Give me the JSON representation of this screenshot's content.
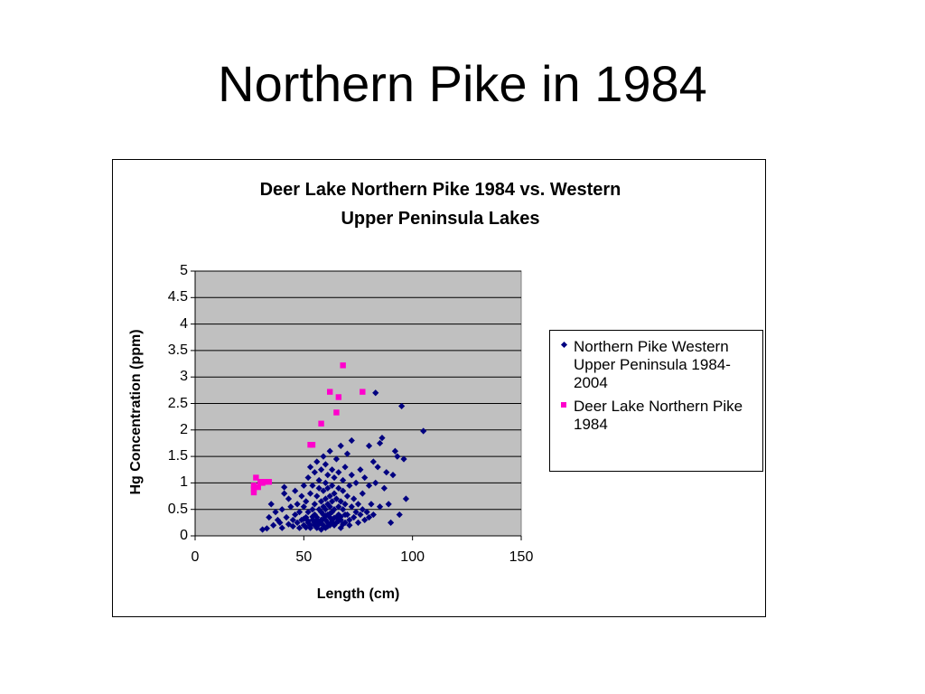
{
  "slide": {
    "title": "Northern Pike in 1984"
  },
  "chart_data": {
    "type": "scatter",
    "title": "Deer Lake Northern Pike 1984 vs. Western Upper Peninsula Lakes",
    "xlabel": "Length (cm)",
    "ylabel": "Hg Concentration (ppm)",
    "xlim": [
      0,
      150
    ],
    "ylim": [
      0,
      5
    ],
    "xticks": [
      "0",
      "50",
      "100",
      "150"
    ],
    "yticks": [
      "0",
      "0.5",
      "1",
      "1.5",
      "2",
      "2.5",
      "3",
      "3.5",
      "4",
      "4.5",
      "5"
    ],
    "grid": "horizontal",
    "legend_position": "right",
    "plot_background": "#c0c0c0",
    "series": [
      {
        "name": "Northern Pike Western Upper Peninsula 1984-2004",
        "marker": "diamond",
        "color": "#000080",
        "points": [
          [
            31,
            0.12
          ],
          [
            33,
            0.14
          ],
          [
            34,
            0.35
          ],
          [
            35,
            0.6
          ],
          [
            36,
            0.2
          ],
          [
            37,
            0.45
          ],
          [
            38,
            0.3
          ],
          [
            39,
            0.25
          ],
          [
            40,
            0.15
          ],
          [
            40,
            0.5
          ],
          [
            41,
            0.8
          ],
          [
            41,
            0.92
          ],
          [
            42,
            0.35
          ],
          [
            43,
            0.7
          ],
          [
            43,
            0.22
          ],
          [
            44,
            0.55
          ],
          [
            45,
            0.3
          ],
          [
            45,
            0.18
          ],
          [
            46,
            0.4
          ],
          [
            46,
            0.85
          ],
          [
            47,
            0.25
          ],
          [
            47,
            0.6
          ],
          [
            48,
            0.15
          ],
          [
            48,
            0.45
          ],
          [
            49,
            0.75
          ],
          [
            49,
            0.3
          ],
          [
            50,
            0.2
          ],
          [
            50,
            0.55
          ],
          [
            50,
            0.95
          ],
          [
            51,
            0.35
          ],
          [
            51,
            0.65
          ],
          [
            52,
            0.25
          ],
          [
            52,
            1.1
          ],
          [
            52,
            0.45
          ],
          [
            53,
            0.15
          ],
          [
            53,
            0.8
          ],
          [
            53,
            1.3
          ],
          [
            54,
            0.5
          ],
          [
            54,
            0.3
          ],
          [
            54,
            0.95
          ],
          [
            55,
            0.2
          ],
          [
            55,
            0.6
          ],
          [
            55,
            1.2
          ],
          [
            55,
            0.4
          ],
          [
            56,
            0.35
          ],
          [
            56,
            0.75
          ],
          [
            56,
            1.4
          ],
          [
            56,
            0.15
          ],
          [
            57,
            0.5
          ],
          [
            57,
            0.9
          ],
          [
            57,
            0.25
          ],
          [
            57,
            1.05
          ],
          [
            58,
            0.3
          ],
          [
            58,
            0.65
          ],
          [
            58,
            0.45
          ],
          [
            58,
            1.25
          ],
          [
            58,
            0.12
          ],
          [
            59,
            0.55
          ],
          [
            59,
            0.85
          ],
          [
            59,
            0.2
          ],
          [
            59,
            0.4
          ],
          [
            59,
            1.5
          ],
          [
            60,
            0.3
          ],
          [
            60,
            0.7
          ],
          [
            60,
            1.0
          ],
          [
            60,
            0.5
          ],
          [
            60,
            0.15
          ],
          [
            60,
            1.35
          ],
          [
            61,
            0.25
          ],
          [
            61,
            0.6
          ],
          [
            61,
            0.9
          ],
          [
            61,
            0.4
          ],
          [
            61,
            1.15
          ],
          [
            62,
            0.35
          ],
          [
            62,
            0.75
          ],
          [
            62,
            0.2
          ],
          [
            62,
            0.55
          ],
          [
            62,
            1.6
          ],
          [
            63,
            0.45
          ],
          [
            63,
            0.95
          ],
          [
            63,
            0.3
          ],
          [
            63,
            1.25
          ],
          [
            63,
            0.65
          ],
          [
            64,
            0.2
          ],
          [
            64,
            0.5
          ],
          [
            64,
            0.8
          ],
          [
            64,
            1.1
          ],
          [
            65,
            0.35
          ],
          [
            65,
            0.7
          ],
          [
            65,
            1.45
          ],
          [
            65,
            0.25
          ],
          [
            66,
            0.55
          ],
          [
            66,
            0.9
          ],
          [
            66,
            0.4
          ],
          [
            66,
            1.2
          ],
          [
            67,
            0.3
          ],
          [
            67,
            0.65
          ],
          [
            67,
            1.7
          ],
          [
            67,
            0.15
          ],
          [
            68,
            0.5
          ],
          [
            68,
            0.85
          ],
          [
            68,
            1.05
          ],
          [
            69,
            0.25
          ],
          [
            69,
            0.6
          ],
          [
            69,
            1.3
          ],
          [
            70,
            0.4
          ],
          [
            70,
            0.75
          ],
          [
            70,
            1.55
          ],
          [
            71,
            0.3
          ],
          [
            71,
            0.95
          ],
          [
            71,
            0.2
          ],
          [
            72,
            0.55
          ],
          [
            72,
            1.15
          ],
          [
            72,
            1.8
          ],
          [
            73,
            0.35
          ],
          [
            73,
            0.7
          ],
          [
            74,
            0.45
          ],
          [
            74,
            1.0
          ],
          [
            75,
            0.25
          ],
          [
            75,
            0.6
          ],
          [
            76,
            0.4
          ],
          [
            76,
            1.25
          ],
          [
            77,
            0.5
          ],
          [
            77,
            0.8
          ],
          [
            78,
            0.3
          ],
          [
            78,
            1.1
          ],
          [
            79,
            0.45
          ],
          [
            80,
            0.35
          ],
          [
            80,
            0.95
          ],
          [
            80,
            1.7
          ],
          [
            81,
            0.6
          ],
          [
            82,
            1.4
          ],
          [
            82,
            0.4
          ],
          [
            83,
            1.0
          ],
          [
            83,
            2.7
          ],
          [
            84,
            1.3
          ],
          [
            85,
            0.55
          ],
          [
            85,
            1.75
          ],
          [
            86,
            1.85
          ],
          [
            87,
            0.9
          ],
          [
            88,
            1.2
          ],
          [
            89,
            0.6
          ],
          [
            90,
            0.25
          ],
          [
            91,
            1.15
          ],
          [
            92,
            1.6
          ],
          [
            93,
            1.5
          ],
          [
            94,
            0.4
          ],
          [
            95,
            2.45
          ],
          [
            96,
            1.45
          ],
          [
            97,
            0.7
          ],
          [
            105,
            1.98
          ],
          [
            57,
            0.22
          ],
          [
            58,
            0.28
          ],
          [
            59,
            0.32
          ],
          [
            60,
            0.38
          ],
          [
            61,
            0.18
          ],
          [
            62,
            0.42
          ],
          [
            63,
            0.26
          ],
          [
            64,
            0.34
          ],
          [
            56,
            0.3
          ],
          [
            55,
            0.24
          ],
          [
            54,
            0.36
          ],
          [
            53,
            0.2
          ],
          [
            52,
            0.28
          ],
          [
            51,
            0.16
          ],
          [
            50,
            0.32
          ],
          [
            66,
            0.28
          ],
          [
            67,
            0.36
          ],
          [
            68,
            0.22
          ],
          [
            69,
            0.4
          ]
        ]
      },
      {
        "name": "Deer Lake Northern Pike 1984",
        "marker": "square",
        "color": "#ff00cc",
        "points": [
          [
            27,
            0.82
          ],
          [
            27,
            0.88
          ],
          [
            27,
            0.95
          ],
          [
            28,
            1.1
          ],
          [
            29,
            0.92
          ],
          [
            30,
            1.02
          ],
          [
            31,
            1.0
          ],
          [
            32,
            1.02
          ],
          [
            34,
            1.02
          ],
          [
            53,
            1.72
          ],
          [
            54,
            1.72
          ],
          [
            58,
            2.12
          ],
          [
            62,
            2.72
          ],
          [
            65,
            2.33
          ],
          [
            66,
            2.62
          ],
          [
            68,
            3.22
          ],
          [
            77,
            2.72
          ]
        ]
      }
    ]
  }
}
